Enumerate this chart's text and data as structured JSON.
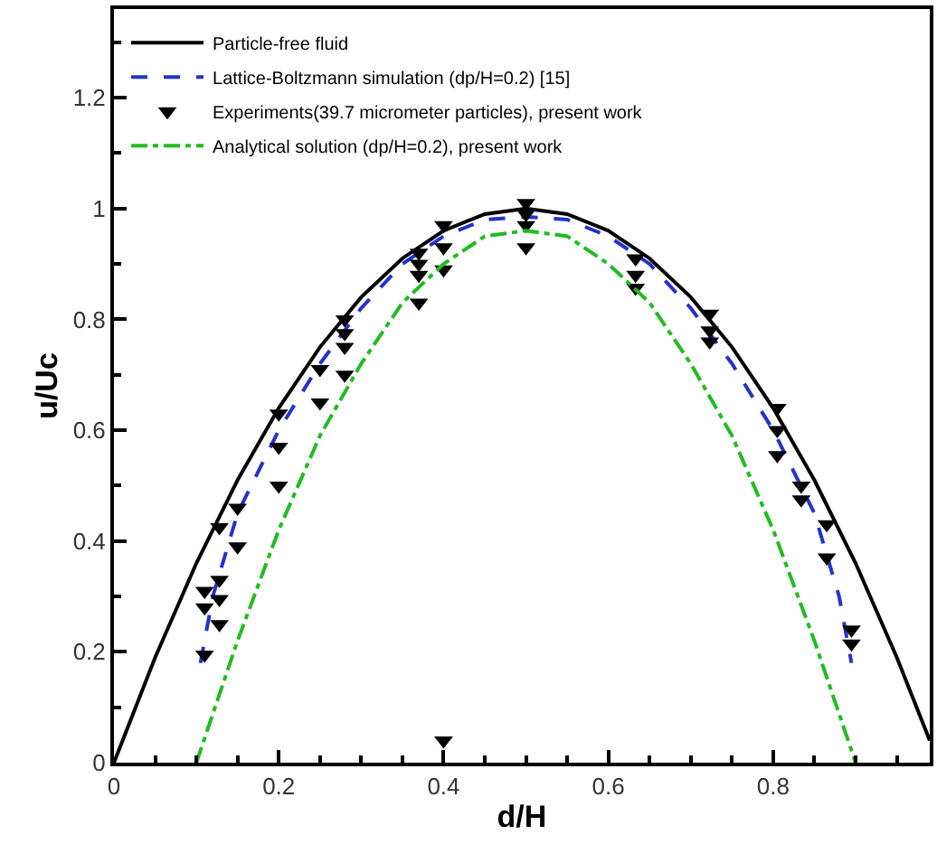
{
  "chart_data": {
    "type": "line",
    "xlabel": "d/H",
    "ylabel": "u/Uc",
    "xlim": [
      0,
      0.99
    ],
    "ylim": [
      0,
      1.36
    ],
    "xticks": [
      0,
      0.2,
      0.4,
      0.6,
      0.8
    ],
    "yticks": [
      0,
      0.2,
      0.4,
      0.6,
      0.8,
      1,
      1.2
    ],
    "grid": false,
    "legend": "top left",
    "series": [
      {
        "name": "Particle-free fluid",
        "color": "#000000",
        "line_style": "solid",
        "x": [
          0,
          0.05,
          0.1,
          0.15,
          0.2,
          0.25,
          0.3,
          0.35,
          0.4,
          0.45,
          0.5,
          0.55,
          0.6,
          0.65,
          0.7,
          0.75,
          0.8,
          0.85,
          0.9,
          0.95,
          0.99
        ],
        "values": [
          0,
          0.19,
          0.36,
          0.51,
          0.64,
          0.75,
          0.84,
          0.91,
          0.96,
          0.99,
          1.0,
          0.99,
          0.96,
          0.91,
          0.84,
          0.75,
          0.64,
          0.51,
          0.36,
          0.19,
          0.04
        ]
      },
      {
        "name": "Lattice-Boltzmann simulation (dp/H=0.2) [15]",
        "color": "#2233cc",
        "line_style": "dashed",
        "x": [
          0.105,
          0.12,
          0.15,
          0.2,
          0.25,
          0.3,
          0.35,
          0.4,
          0.45,
          0.5,
          0.55,
          0.6,
          0.65,
          0.7,
          0.75,
          0.8,
          0.85,
          0.88,
          0.895
        ],
        "values": [
          0.18,
          0.3,
          0.45,
          0.6,
          0.72,
          0.82,
          0.9,
          0.95,
          0.98,
          0.985,
          0.98,
          0.95,
          0.9,
          0.82,
          0.72,
          0.6,
          0.45,
          0.3,
          0.18
        ]
      },
      {
        "name": "Experiments(39.7 micrometer particles), present work",
        "type": "scatter",
        "marker": "triangle",
        "color": "#000000",
        "x": [
          0.11,
          0.11,
          0.11,
          0.128,
          0.128,
          0.128,
          0.128,
          0.15,
          0.15,
          0.2,
          0.2,
          0.2,
          0.25,
          0.25,
          0.28,
          0.28,
          0.28,
          0.28,
          0.37,
          0.37,
          0.37,
          0.37,
          0.4,
          0.4,
          0.4,
          0.4,
          0.5,
          0.5,
          0.5,
          0.5,
          0.633,
          0.633,
          0.633,
          0.723,
          0.723,
          0.723,
          0.805,
          0.805,
          0.805,
          0.834,
          0.834,
          0.865,
          0.865,
          0.895,
          0.895
        ],
        "values": [
          0.31,
          0.28,
          0.195,
          0.425,
          0.33,
          0.295,
          0.25,
          0.46,
          0.39,
          0.63,
          0.57,
          0.5,
          0.71,
          0.65,
          0.8,
          0.775,
          0.75,
          0.7,
          0.92,
          0.9,
          0.88,
          0.83,
          0.97,
          0.93,
          0.89,
          0.04,
          1.01,
          0.99,
          0.97,
          0.93,
          0.91,
          0.88,
          0.857,
          0.81,
          0.78,
          0.76,
          0.64,
          0.6,
          0.555,
          0.5,
          0.475,
          0.43,
          0.37,
          0.24,
          0.215
        ]
      },
      {
        "name": "Analytical solution (dp/H=0.2), present work",
        "color": "#22bb22",
        "line_style": "dashdot",
        "x": [
          0.1,
          0.15,
          0.2,
          0.25,
          0.3,
          0.35,
          0.4,
          0.45,
          0.5,
          0.55,
          0.6,
          0.65,
          0.7,
          0.75,
          0.8,
          0.85,
          0.9
        ],
        "values": [
          0,
          0.22,
          0.42,
          0.59,
          0.72,
          0.83,
          0.9,
          0.95,
          0.96,
          0.95,
          0.9,
          0.83,
          0.72,
          0.59,
          0.42,
          0.22,
          0
        ]
      }
    ]
  }
}
